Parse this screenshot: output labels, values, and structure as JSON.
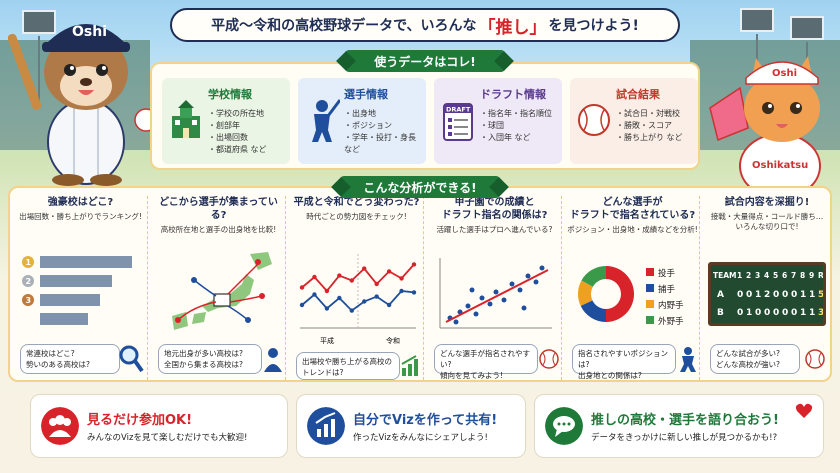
{
  "title": {
    "pre": "平成〜令和の高校野球データで、いろんな",
    "highlight": "「推し」",
    "post": "を見つけよう!"
  },
  "mascot_cap": "Oshi",
  "mascot_shirt": "Oshikatsu",
  "data_section": {
    "heading": "使うデータはコレ!",
    "cards": [
      {
        "title": "学校情報",
        "color": "#1f7a3a",
        "bg": "#eaf5e6",
        "items": [
          "・学校の所在地",
          "・創部年",
          "・出場回数",
          "・都道府県 など"
        ],
        "icon": "school-icon"
      },
      {
        "title": "選手情報",
        "color": "#1f4f9c",
        "bg": "#e4eefa",
        "items": [
          "・出身地",
          "・ポジション",
          "・学年・投打・身長 など"
        ],
        "icon": "batter-icon"
      },
      {
        "title": "ドラフト情報",
        "color": "#5a3a8c",
        "bg": "#efe9f7",
        "items": [
          "・指名年・指名順位",
          "・球団",
          "・入団年 など"
        ],
        "icon": "clipboard-icon",
        "badge": "DRAFT"
      },
      {
        "title": "試合結果",
        "color": "#c0392b",
        "bg": "#fbeee6",
        "items": [
          "・試合日・対戦校",
          "・勝敗・スコア",
          "・勝ち上がり など"
        ],
        "icon": "baseball-icon"
      }
    ]
  },
  "analysis_section": {
    "heading": "こんな分析ができる!",
    "columns": [
      {
        "title": "強豪校はどこ?",
        "sub": "出場回数・勝ち上がりでランキング!",
        "bubble": [
          "常連校はどこ?",
          "勢いのある高校は?"
        ],
        "ranks": [
          "1",
          "2",
          "3"
        ],
        "bars": [
          0.92,
          0.72,
          0.6,
          0.48
        ]
      },
      {
        "title": "どこから選手が集まっている?",
        "sub": "高校所在地と選手の出身地を比較!",
        "bubble": [
          "地元出身が多い高校は?",
          "全国から集まる高校は?"
        ]
      },
      {
        "title": "平成と令和でどう変わった?",
        "sub": "時代ごとの勢力図をチェック!",
        "bubble": [
          "出場校や勝ち上がる高校の",
          "トレンドは?"
        ],
        "era_labels": [
          "平成",
          "令和"
        ],
        "red": [
          0.55,
          0.7,
          0.5,
          0.72,
          0.65,
          0.82,
          0.6,
          0.78,
          0.68,
          0.88
        ],
        "blue": [
          0.3,
          0.45,
          0.25,
          0.4,
          0.22,
          0.35,
          0.42,
          0.3,
          0.5,
          0.48
        ]
      },
      {
        "title": "甲子園での成績と\nドラフト指名の関係は?",
        "sub": "活躍した選手はプロへ進んでいる?",
        "bubble": [
          "どんな選手が指名されやすい?",
          "傾向を見てみよう!"
        ]
      },
      {
        "title": "どんな選手が\nドラフトで指名されている?",
        "sub": "ポジション・出身地・成績などを分析!",
        "bubble": [
          "指名されやすいポジションは?",
          "出身地との関係は?"
        ],
        "legend": [
          {
            "label": "投手",
            "color": "#d8232a",
            "value": 0.5
          },
          {
            "label": "捕手",
            "color": "#1f4f9c",
            "value": 0.18
          },
          {
            "label": "内野手",
            "color": "#f0a020",
            "value": 0.15
          },
          {
            "label": "外野手",
            "color": "#3a9a4a",
            "value": 0.17
          }
        ]
      },
      {
        "title": "試合内容を深掘り!",
        "sub": "接戦・大量得点・コールド勝ち…\nいろんな切り口で!",
        "bubble": [
          "どんな試合が多い?",
          "どんな高校が強い?"
        ],
        "scoreboard": {
          "team_label": "TEAM",
          "innings": [
            "1",
            "2",
            "3",
            "4",
            "5",
            "6",
            "7",
            "8",
            "9",
            "R"
          ],
          "rows": [
            {
              "team": "A",
              "scores": [
                "0",
                "0",
                "1",
                "2",
                "0",
                "0",
                "0",
                "1",
                "1",
                "5"
              ]
            },
            {
              "team": "B",
              "scores": [
                "0",
                "1",
                "0",
                "0",
                "0",
                "0",
                "0",
                "1",
                "1",
                "3"
              ]
            }
          ]
        }
      }
    ]
  },
  "bottom": [
    {
      "title": "見るだけ参加OK!",
      "sub": "みんなのVizを見て楽しむだけでも大歓迎!",
      "color": "#d8232a",
      "icon": "people-icon"
    },
    {
      "title": "自分でVizを作って共有!",
      "sub": "作ったVizをみんなにシェアしよう!",
      "color": "#1f4f9c",
      "icon": "chart-up-icon"
    },
    {
      "title": "推しの高校・選手を語り合おう!",
      "sub": "データをきっかけに新しい推しが見つかるかも!?",
      "color": "#1f7a3a",
      "icon": "chat-icon"
    }
  ]
}
